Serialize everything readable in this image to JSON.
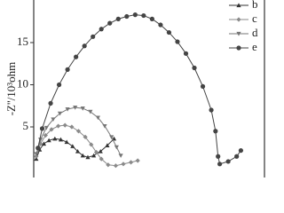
{
  "chart_data": {
    "type": "line",
    "y_label": "-Z''/10³ohm",
    "xlim": [
      0,
      27.5
    ],
    "ylim": [
      -1,
      20.05
    ],
    "yticks": [
      5,
      10,
      15
    ],
    "legend": "top-right",
    "series": [
      {
        "name": "b",
        "marker": "triangle-up",
        "color": "#333333",
        "x": [
          0.3,
          0.7,
          1.2,
          1.8,
          2.5,
          3.2,
          3.9,
          4.6,
          5.2,
          5.8,
          6.4,
          7.1,
          7.9,
          8.7,
          9.5
        ],
        "values": [
          1.2,
          2.3,
          3,
          3.4,
          3.6,
          3.5,
          3.2,
          2.7,
          2.1,
          1.6,
          1.4,
          1.6,
          2.1,
          2.8,
          3.6
        ]
      },
      {
        "name": "c",
        "marker": "diamond",
        "color": "#8a8a8a",
        "x": [
          0.3,
          0.8,
          1.4,
          2.1,
          2.9,
          3.7,
          4.5,
          5.3,
          6.1,
          6.8,
          7.4,
          8,
          8.8,
          9.7,
          10.6,
          11.5,
          12.3
        ],
        "values": [
          1.5,
          3,
          4,
          4.7,
          5.1,
          5.2,
          5,
          4.5,
          3.8,
          2.9,
          2,
          1.2,
          0.5,
          0.4,
          0.6,
          0.8,
          1
        ]
      },
      {
        "name": "d",
        "marker": "triangle-down",
        "color": "#767676",
        "x": [
          0.3,
          0.8,
          1.5,
          2.3,
          3.1,
          4,
          4.9,
          5.8,
          6.7,
          7.6,
          8.4,
          9.2,
          9.8,
          10.3
        ],
        "values": [
          1.8,
          3.5,
          4.9,
          5.9,
          6.6,
          7.1,
          7.3,
          7.2,
          6.8,
          6.1,
          5.1,
          3.8,
          2.6,
          1.6
        ]
      },
      {
        "name": "e",
        "marker": "circle",
        "color": "#444444",
        "x": [
          0.5,
          1,
          2,
          3,
          4,
          5,
          6,
          7,
          8,
          9,
          10,
          11,
          12,
          13,
          14,
          15,
          16,
          17,
          18,
          19,
          20,
          21,
          21.5,
          21.8,
          22,
          23,
          24,
          24.5
        ],
        "values": [
          2.5,
          4.8,
          7.8,
          10,
          11.8,
          13.3,
          14.6,
          15.7,
          16.6,
          17.3,
          17.8,
          18.1,
          18.3,
          18.2,
          17.8,
          17.1,
          16.2,
          15.1,
          13.7,
          12,
          9.8,
          7,
          4.5,
          1.5,
          0.6,
          0.9,
          1.5,
          2.2
        ]
      }
    ]
  }
}
